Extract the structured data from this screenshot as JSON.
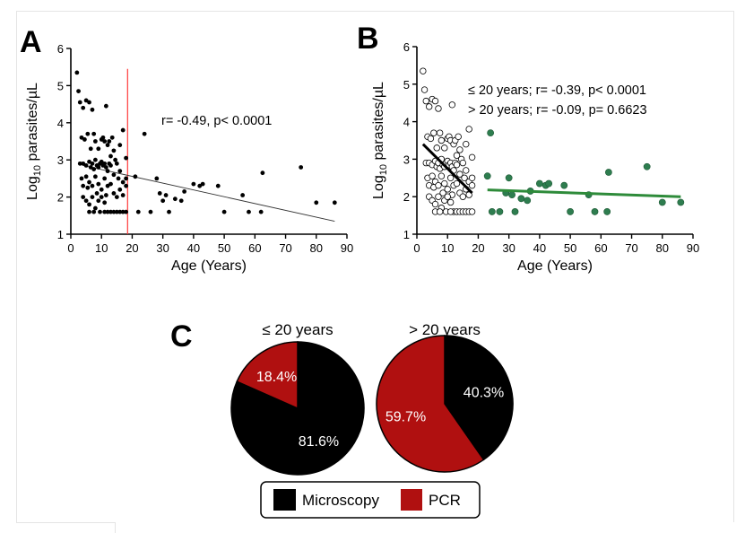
{
  "panels": {
    "a": "A",
    "b": "B",
    "c": "C"
  },
  "colors": {
    "young": "#000000",
    "old_b": "#2e7d4f",
    "old_fit": "#2e8b3a",
    "cutoff_line": "#ff3b3b",
    "microscopy": "#000000",
    "pcr": "#b01010"
  },
  "chart_data": [
    {
      "panel": "A",
      "type": "scatter",
      "xlabel": "Age (Years)",
      "ylabel": {
        "prefix": "Log",
        "subscript": "10",
        "suffix": " parasites/µL"
      },
      "xlim": [
        0,
        90
      ],
      "ylim": [
        1,
        6
      ],
      "xticks": [
        0,
        10,
        20,
        30,
        40,
        50,
        60,
        70,
        80,
        90
      ],
      "yticks": [
        1,
        2,
        3,
        4,
        5,
        6
      ],
      "annotation": "r= -0.49, p< 0.0001",
      "cutoff_x": 18.5,
      "fit": {
        "x": [
          4,
          86
        ],
        "y": [
          2.85,
          1.35
        ]
      },
      "series": [
        {
          "points": [
            [
              2.0,
              5.35
            ],
            [
              2.5,
              4.85
            ],
            [
              3.0,
              4.55
            ],
            [
              4.0,
              4.4
            ],
            [
              5.0,
              4.6
            ],
            [
              6.0,
              4.55
            ],
            [
              7.0,
              4.35
            ],
            [
              3.5,
              3.6
            ],
            [
              4.5,
              3.55
            ],
            [
              5.5,
              3.7
            ],
            [
              6.5,
              3.3
            ],
            [
              7.5,
              3.7
            ],
            [
              8.0,
              3.5
            ],
            [
              9.0,
              3.3
            ],
            [
              10.0,
              3.55
            ],
            [
              10.5,
              3.6
            ],
            [
              11.0,
              3.5
            ],
            [
              11.5,
              4.45
            ],
            [
              12.0,
              3.4
            ],
            [
              12.5,
              3.5
            ],
            [
              13.0,
              3.1
            ],
            [
              13.5,
              3.6
            ],
            [
              14.0,
              3.25
            ],
            [
              14.5,
              3.0
            ],
            [
              16.0,
              3.4
            ],
            [
              17.0,
              3.8
            ],
            [
              18.0,
              3.05
            ],
            [
              3.0,
              2.9
            ],
            [
              4.0,
              2.9
            ],
            [
              5.0,
              2.85
            ],
            [
              6.0,
              2.95
            ],
            [
              6.5,
              2.8
            ],
            [
              7.0,
              2.9
            ],
            [
              7.5,
              2.75
            ],
            [
              8.0,
              3.0
            ],
            [
              8.5,
              2.85
            ],
            [
              9.0,
              2.8
            ],
            [
              9.5,
              2.9
            ],
            [
              10.0,
              2.95
            ],
            [
              10.5,
              2.85
            ],
            [
              11.0,
              2.9
            ],
            [
              11.5,
              2.8
            ],
            [
              12.0,
              2.7
            ],
            [
              12.5,
              2.9
            ],
            [
              13.0,
              2.85
            ],
            [
              14.0,
              2.6
            ],
            [
              15.0,
              2.9
            ],
            [
              15.5,
              2.5
            ],
            [
              16.0,
              2.7
            ],
            [
              17.0,
              2.4
            ],
            [
              18.0,
              2.5
            ],
            [
              3.5,
              2.5
            ],
            [
              4.0,
              2.3
            ],
            [
              5.0,
              2.55
            ],
            [
              5.5,
              2.25
            ],
            [
              6.0,
              2.4
            ],
            [
              7.0,
              2.3
            ],
            [
              8.0,
              2.55
            ],
            [
              8.5,
              2.1
            ],
            [
              9.0,
              2.35
            ],
            [
              10.0,
              2.2
            ],
            [
              11.0,
              2.5
            ],
            [
              11.5,
              2.05
            ],
            [
              12.0,
              2.3
            ],
            [
              13.0,
              2.35
            ],
            [
              14.0,
              2.1
            ],
            [
              15.0,
              2.0
            ],
            [
              16.0,
              2.2
            ],
            [
              17.0,
              2.05
            ],
            [
              18.0,
              2.3
            ],
            [
              4.0,
              2.0
            ],
            [
              5.0,
              1.9
            ],
            [
              6.0,
              1.8
            ],
            [
              7.0,
              2.0
            ],
            [
              8.0,
              1.7
            ],
            [
              9.0,
              1.9
            ],
            [
              10.0,
              2.0
            ],
            [
              11.0,
              1.85
            ],
            [
              12.0,
              1.6
            ],
            [
              13.0,
              1.6
            ],
            [
              14.0,
              1.6
            ],
            [
              15.0,
              1.6
            ],
            [
              16.0,
              1.6
            ],
            [
              17.0,
              1.6
            ],
            [
              18.0,
              1.6
            ],
            [
              6.0,
              1.6
            ],
            [
              7.5,
              1.6
            ],
            [
              9.5,
              1.6
            ],
            [
              11.0,
              1.6
            ],
            [
              21.0,
              2.55
            ],
            [
              22.0,
              1.6
            ],
            [
              24.0,
              3.7
            ],
            [
              26.0,
              1.6
            ],
            [
              28.0,
              2.5
            ],
            [
              29.0,
              2.1
            ],
            [
              30.0,
              1.9
            ],
            [
              31.0,
              2.05
            ],
            [
              32.0,
              1.6
            ],
            [
              34.0,
              1.95
            ],
            [
              36.0,
              1.9
            ],
            [
              37.0,
              2.15
            ],
            [
              40.0,
              2.35
            ],
            [
              42.0,
              2.3
            ],
            [
              43.0,
              2.35
            ],
            [
              48.0,
              2.3
            ],
            [
              50.0,
              1.6
            ],
            [
              56.0,
              2.05
            ],
            [
              58.0,
              1.6
            ],
            [
              62.0,
              1.6
            ],
            [
              62.5,
              2.65
            ],
            [
              75.0,
              2.8
            ],
            [
              80.0,
              1.85
            ],
            [
              86.0,
              1.85
            ]
          ]
        }
      ]
    },
    {
      "panel": "B",
      "type": "scatter",
      "xlabel": "Age (Years)",
      "ylabel": {
        "prefix": "Log",
        "subscript": "10",
        "suffix": " parasites/µL"
      },
      "xlim": [
        0,
        90
      ],
      "ylim": [
        1,
        6
      ],
      "xticks": [
        0,
        10,
        20,
        30,
        40,
        50,
        60,
        70,
        80,
        90
      ],
      "yticks": [
        1,
        2,
        3,
        4,
        5,
        6
      ],
      "annotations": [
        "≤ 20 years; r= -0.39, p< 0.0001",
        "> 20 years; r= -0.09, p= 0.6623"
      ],
      "series": [
        {
          "style": "open",
          "fit": {
            "x": [
              2,
              18
            ],
            "y": [
              3.4,
              2.1
            ]
          },
          "points": [
            [
              2.0,
              5.35
            ],
            [
              2.5,
              4.85
            ],
            [
              3.0,
              4.55
            ],
            [
              4.0,
              4.4
            ],
            [
              5.0,
              4.6
            ],
            [
              6.0,
              4.55
            ],
            [
              7.0,
              4.35
            ],
            [
              3.5,
              3.6
            ],
            [
              4.5,
              3.55
            ],
            [
              5.5,
              3.7
            ],
            [
              6.5,
              3.3
            ],
            [
              7.5,
              3.7
            ],
            [
              8.0,
              3.5
            ],
            [
              9.0,
              3.3
            ],
            [
              10.0,
              3.55
            ],
            [
              10.5,
              3.6
            ],
            [
              11.0,
              3.5
            ],
            [
              11.5,
              4.45
            ],
            [
              12.0,
              3.4
            ],
            [
              12.5,
              3.5
            ],
            [
              13.0,
              3.1
            ],
            [
              13.5,
              3.6
            ],
            [
              14.0,
              3.25
            ],
            [
              14.5,
              3.0
            ],
            [
              16.0,
              3.4
            ],
            [
              17.0,
              3.8
            ],
            [
              18.0,
              3.05
            ],
            [
              3.0,
              2.9
            ],
            [
              4.0,
              2.9
            ],
            [
              5.0,
              2.85
            ],
            [
              6.0,
              2.95
            ],
            [
              6.5,
              2.8
            ],
            [
              7.0,
              2.9
            ],
            [
              7.5,
              2.75
            ],
            [
              8.0,
              3.0
            ],
            [
              8.5,
              2.85
            ],
            [
              9.0,
              2.8
            ],
            [
              9.5,
              2.9
            ],
            [
              10.0,
              2.95
            ],
            [
              10.5,
              2.85
            ],
            [
              11.0,
              2.9
            ],
            [
              11.5,
              2.8
            ],
            [
              12.0,
              2.7
            ],
            [
              12.5,
              2.9
            ],
            [
              13.0,
              2.85
            ],
            [
              14.0,
              2.6
            ],
            [
              15.0,
              2.9
            ],
            [
              15.5,
              2.5
            ],
            [
              16.0,
              2.7
            ],
            [
              17.0,
              2.4
            ],
            [
              18.0,
              2.5
            ],
            [
              3.5,
              2.5
            ],
            [
              4.0,
              2.3
            ],
            [
              5.0,
              2.55
            ],
            [
              5.5,
              2.25
            ],
            [
              6.0,
              2.4
            ],
            [
              7.0,
              2.3
            ],
            [
              8.0,
              2.55
            ],
            [
              8.5,
              2.1
            ],
            [
              9.0,
              2.35
            ],
            [
              10.0,
              2.2
            ],
            [
              11.0,
              2.5
            ],
            [
              11.5,
              2.05
            ],
            [
              12.0,
              2.3
            ],
            [
              13.0,
              2.35
            ],
            [
              14.0,
              2.1
            ],
            [
              15.0,
              2.0
            ],
            [
              16.0,
              2.2
            ],
            [
              17.0,
              2.05
            ],
            [
              18.0,
              2.3
            ],
            [
              4.0,
              2.0
            ],
            [
              5.0,
              1.9
            ],
            [
              6.0,
              1.8
            ],
            [
              7.0,
              2.0
            ],
            [
              8.0,
              1.7
            ],
            [
              9.0,
              1.9
            ],
            [
              10.0,
              2.0
            ],
            [
              11.0,
              1.85
            ],
            [
              12.0,
              1.6
            ],
            [
              13.0,
              1.6
            ],
            [
              14.0,
              1.6
            ],
            [
              15.0,
              1.6
            ],
            [
              16.0,
              1.6
            ],
            [
              17.0,
              1.6
            ],
            [
              18.0,
              1.6
            ],
            [
              6.0,
              1.6
            ],
            [
              7.5,
              1.6
            ],
            [
              9.5,
              1.6
            ],
            [
              11.0,
              1.6
            ]
          ]
        },
        {
          "style": "filled",
          "fit": {
            "x": [
              23,
              86
            ],
            "y": [
              2.18,
              2.0
            ]
          },
          "points": [
            [
              23.0,
              2.55
            ],
            [
              24.0,
              3.7
            ],
            [
              24.5,
              1.6
            ],
            [
              27.0,
              1.6
            ],
            [
              29.0,
              2.1
            ],
            [
              30.0,
              2.5
            ],
            [
              31.0,
              2.05
            ],
            [
              32.0,
              1.6
            ],
            [
              34.0,
              1.95
            ],
            [
              36.0,
              1.9
            ],
            [
              37.0,
              2.15
            ],
            [
              40.0,
              2.35
            ],
            [
              42.0,
              2.3
            ],
            [
              43.0,
              2.35
            ],
            [
              48.0,
              2.3
            ],
            [
              50.0,
              1.6
            ],
            [
              56.0,
              2.05
            ],
            [
              58.0,
              1.6
            ],
            [
              62.0,
              1.6
            ],
            [
              62.5,
              2.65
            ],
            [
              75.0,
              2.8
            ],
            [
              80.0,
              1.85
            ],
            [
              86.0,
              1.85
            ]
          ]
        }
      ]
    },
    {
      "panel": "C",
      "type": "pie",
      "pies": [
        {
          "title": "≤ 20 years",
          "slices": [
            {
              "name": "Microscopy",
              "value": 81.6,
              "label": "81.6%"
            },
            {
              "name": "PCR",
              "value": 18.4,
              "label": "18.4%"
            }
          ]
        },
        {
          "title": "> 20 years",
          "slices": [
            {
              "name": "Microscopy",
              "value": 40.3,
              "label": "40.3%"
            },
            {
              "name": "PCR",
              "value": 59.7,
              "label": "59.7%"
            }
          ]
        }
      ],
      "legend": [
        {
          "name": "Microscopy"
        },
        {
          "name": "PCR"
        }
      ],
      "legend_position": "bottom"
    }
  ]
}
